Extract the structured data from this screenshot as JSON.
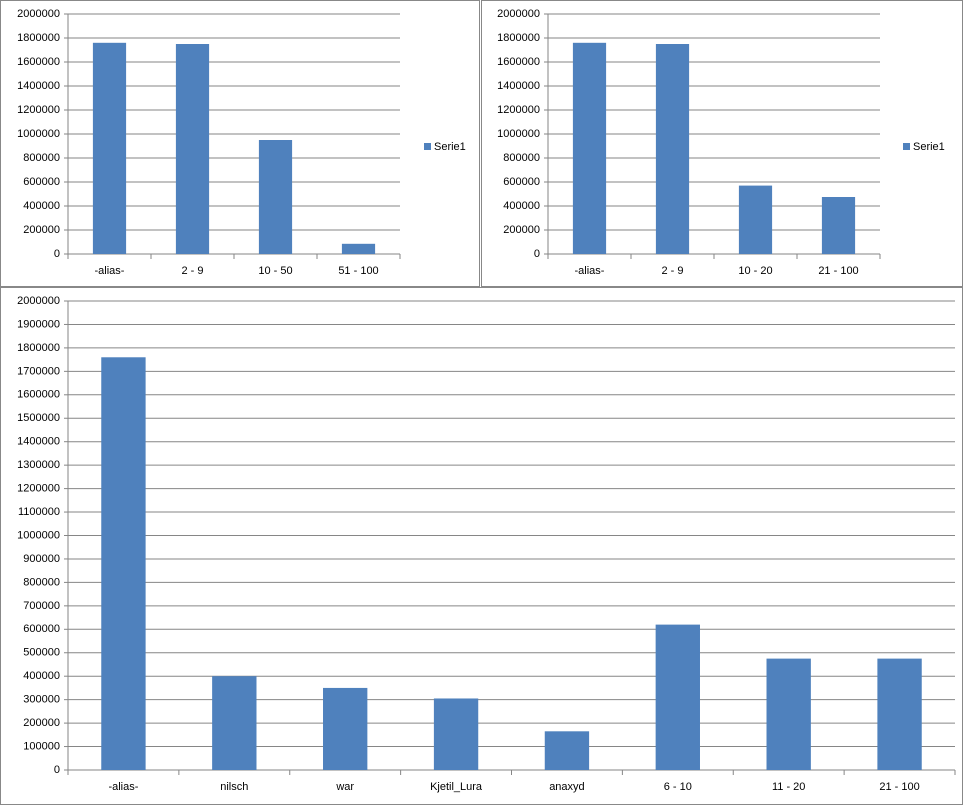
{
  "chart_data": [
    {
      "type": "bar",
      "categories": [
        "-alias-",
        "2 - 9",
        "10 - 50",
        "51 - 100"
      ],
      "series": [
        {
          "name": "Serie1",
          "color": "#4f81bd",
          "values": [
            1760000,
            1750000,
            950000,
            85000
          ]
        }
      ],
      "ylim": [
        0,
        2000000
      ],
      "yticks": [
        0,
        200000,
        400000,
        600000,
        800000,
        1000000,
        1200000,
        1400000,
        1600000,
        1800000,
        2000000
      ],
      "grid": true,
      "legend": "right"
    },
    {
      "type": "bar",
      "categories": [
        "-alias-",
        "2 - 9",
        "10 - 20",
        "21 - 100"
      ],
      "series": [
        {
          "name": "Serie1",
          "color": "#4f81bd",
          "values": [
            1760000,
            1750000,
            570000,
            475000
          ]
        }
      ],
      "ylim": [
        0,
        2000000
      ],
      "yticks": [
        0,
        200000,
        400000,
        600000,
        800000,
        1000000,
        1200000,
        1400000,
        1600000,
        1800000,
        2000000
      ],
      "grid": true,
      "legend": "right"
    },
    {
      "type": "bar",
      "categories": [
        "-alias-",
        "nilsch",
        "war",
        "Kjetil_Lura",
        "anaxyd",
        "6 - 10",
        "11 - 20",
        "21 - 100"
      ],
      "values": [
        1760000,
        400000,
        350000,
        305000,
        165000,
        620000,
        475000,
        475000
      ],
      "color": "#4f81bd",
      "ylim": [
        0,
        2000000
      ],
      "yticks": [
        0,
        100000,
        200000,
        300000,
        400000,
        500000,
        600000,
        700000,
        800000,
        900000,
        1000000,
        1100000,
        1200000,
        1300000,
        1400000,
        1500000,
        1600000,
        1700000,
        1800000,
        1900000,
        2000000
      ],
      "grid": true
    }
  ]
}
